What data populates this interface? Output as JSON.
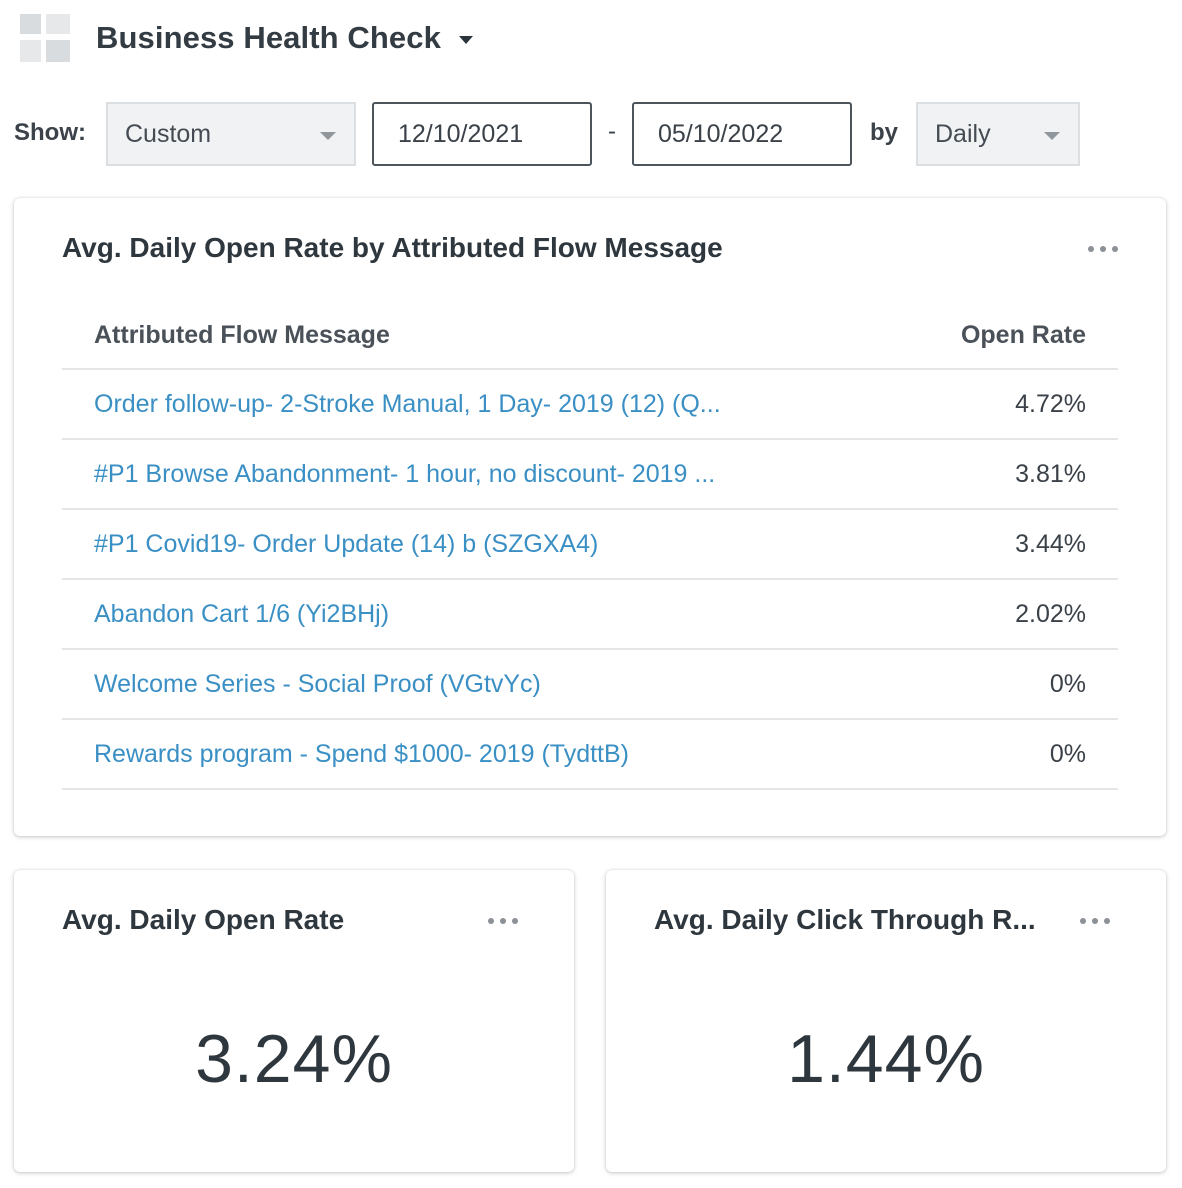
{
  "header": {
    "icon": "dashboard-grid-icon",
    "title": "Business Health Check"
  },
  "filters": {
    "show_label": "Show:",
    "range_select": "Custom",
    "start_date": "12/10/2021",
    "separator": "-",
    "end_date": "05/10/2022",
    "by_label": "by",
    "interval_select": "Daily"
  },
  "table_card": {
    "title": "Avg. Daily Open Rate by Attributed Flow Message",
    "columns": [
      "Attributed Flow Message",
      "Open Rate"
    ],
    "rows": [
      {
        "message": "Order follow-up- 2-Stroke Manual, 1 Day- 2019 (12) (Q...",
        "rate": "4.72%"
      },
      {
        "message": "#P1 Browse Abandonment- 1 hour, no discount- 2019 ...",
        "rate": "3.81%"
      },
      {
        "message": "#P1 Covid19- Order Update (14) b (SZGXA4)",
        "rate": "3.44%"
      },
      {
        "message": "Abandon Cart 1/6 (Yi2BHj)",
        "rate": "2.02%"
      },
      {
        "message": "Welcome Series - Social Proof (VGtvYc)",
        "rate": "0%"
      },
      {
        "message": "Rewards program - Spend $1000- 2019 (TydttB)",
        "rate": "0%"
      }
    ]
  },
  "open_rate_card": {
    "title": "Avg. Daily Open Rate",
    "value": "3.24%"
  },
  "ctr_card": {
    "title": "Avg. Daily Click Through R...",
    "value": "1.44%"
  },
  "colors": {
    "link": "#3a8fc4",
    "text": "#2f373e",
    "border": "#e3e5e7"
  }
}
